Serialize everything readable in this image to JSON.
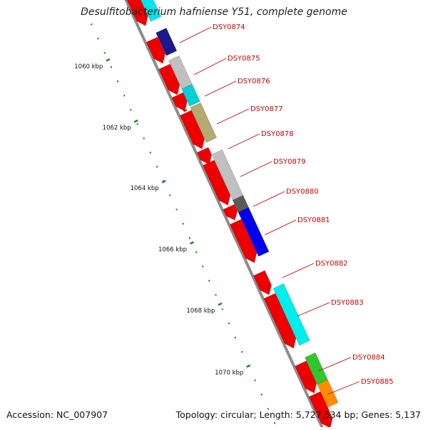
{
  "title": "Desulfitobacterium hafniense Y51, complete genome",
  "accession": "Accession: NC_007907",
  "summary": "Topology: circular; Length: 5,727,534 bp; Genes: 5,137",
  "scale_labels": [
    "1060 kbp",
    "1062 kbp",
    "1064 kbp",
    "1066 kbp",
    "1068 kbp",
    "1070 kbp"
  ],
  "gene_labels": [
    "DSY0874",
    "DSY0875",
    "DSY0876",
    "DSY0877",
    "DSY0878",
    "DSY0879",
    "DSY0880",
    "DSY0881",
    "DSY0882",
    "DSY0883",
    "DSY0884",
    "DSY0885"
  ],
  "colors": {
    "gene": "#ee0000",
    "label": "#cc0000",
    "backbone": "#8c8c8c",
    "tick": "#1a8a1a",
    "cog": [
      "#00e5ee",
      "#1a1a8c",
      "#c0c0c0",
      "#00d0d8",
      "#b5ab70",
      "#c0c0c0",
      "#5a5a5a",
      "#0000ee",
      "#00eeee",
      "#2ec82e",
      "#ff8c00"
    ]
  }
}
